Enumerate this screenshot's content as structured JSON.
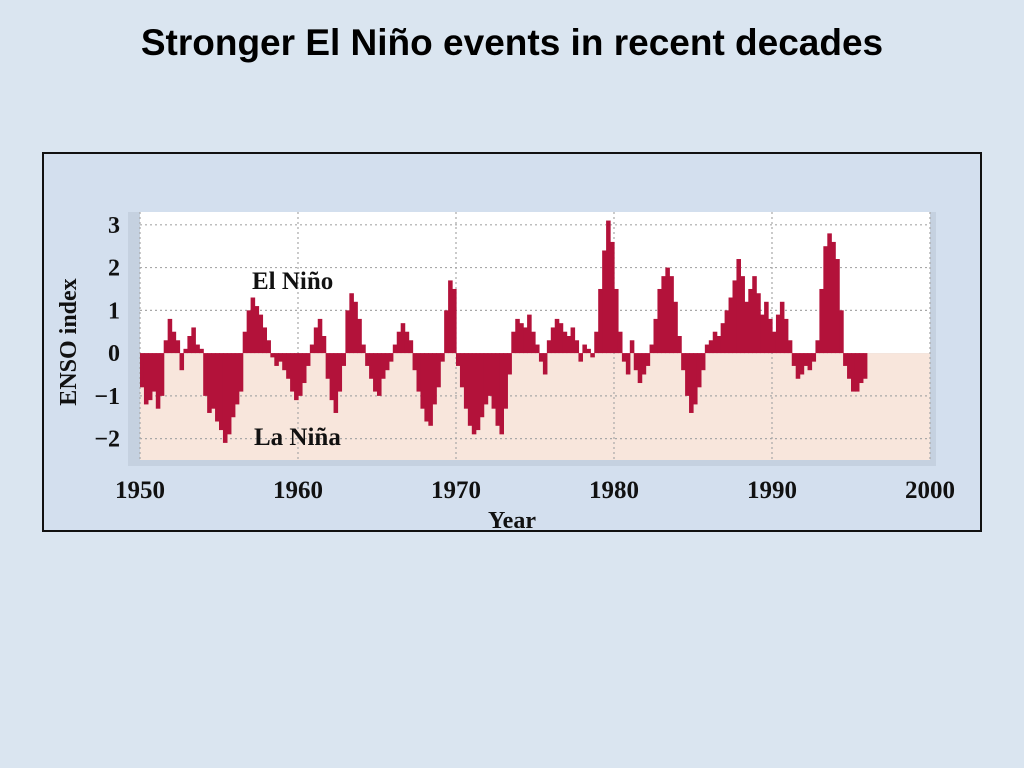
{
  "slide": {
    "title": "Stronger El Niño events in recent decades"
  },
  "colors": {
    "background": "#dae5f0",
    "el_nino_bg": "#ffffff",
    "la_nina_bg": "#f8e6dc",
    "bars": "#b3123a",
    "grid": "#a8a8a8"
  },
  "chart_data": {
    "type": "bar",
    "title": "",
    "xlabel": "Year",
    "ylabel": "ENSO index",
    "xlim": [
      1950,
      2000
    ],
    "ylim": [
      -2.5,
      3.3
    ],
    "x_ticks": [
      "1950",
      "1960",
      "1970",
      "1980",
      "1990",
      "2000"
    ],
    "y_ticks": [
      "3",
      "2",
      "1",
      "0",
      "−1",
      "−2"
    ],
    "grid": true,
    "annotations": [
      "El Niño",
      "La Niña"
    ],
    "x_start": 1950,
    "x_step": 0.25,
    "values": [
      -0.8,
      -1.2,
      -1.1,
      -0.9,
      -1.3,
      -1.0,
      0.3,
      0.8,
      0.5,
      0.3,
      -0.4,
      0.1,
      0.4,
      0.6,
      0.2,
      0.1,
      -1.0,
      -1.4,
      -1.3,
      -1.6,
      -1.8,
      -2.1,
      -1.9,
      -1.5,
      -1.2,
      -0.9,
      0.5,
      1.0,
      1.3,
      1.1,
      0.9,
      0.6,
      0.3,
      -0.1,
      -0.3,
      -0.2,
      -0.4,
      -0.6,
      -0.9,
      -1.1,
      -1.0,
      -0.7,
      -0.3,
      0.2,
      0.6,
      0.8,
      0.4,
      -0.6,
      -1.1,
      -1.4,
      -0.9,
      -0.3,
      1.0,
      1.4,
      1.2,
      0.8,
      0.2,
      -0.3,
      -0.6,
      -0.9,
      -1.0,
      -0.6,
      -0.4,
      -0.2,
      0.2,
      0.5,
      0.7,
      0.5,
      0.3,
      -0.4,
      -0.9,
      -1.3,
      -1.6,
      -1.7,
      -1.2,
      -0.8,
      -0.2,
      1.0,
      1.7,
      1.5,
      -0.3,
      -0.8,
      -1.3,
      -1.7,
      -1.9,
      -1.8,
      -1.5,
      -1.2,
      -1.0,
      -1.3,
      -1.7,
      -1.9,
      -1.3,
      -0.5,
      0.5,
      0.8,
      0.7,
      0.6,
      0.9,
      0.5,
      0.2,
      -0.2,
      -0.5,
      0.3,
      0.6,
      0.8,
      0.7,
      0.5,
      0.4,
      0.6,
      0.3,
      -0.2,
      0.2,
      0.1,
      -0.1,
      0.5,
      1.5,
      2.4,
      3.1,
      2.6,
      1.5,
      0.5,
      -0.2,
      -0.5,
      0.3,
      -0.4,
      -0.7,
      -0.5,
      -0.3,
      0.2,
      0.8,
      1.5,
      1.8,
      2.0,
      1.8,
      1.2,
      0.4,
      -0.4,
      -1.0,
      -1.4,
      -1.2,
      -0.8,
      -0.4,
      0.2,
      0.3,
      0.5,
      0.4,
      0.7,
      1.0,
      1.3,
      1.7,
      2.2,
      1.8,
      1.2,
      1.5,
      1.8,
      1.4,
      0.9,
      1.2,
      0.8,
      0.5,
      0.9,
      1.2,
      0.8,
      0.3,
      -0.3,
      -0.6,
      -0.5,
      -0.3,
      -0.4,
      -0.2,
      0.3,
      1.5,
      2.5,
      2.8,
      2.6,
      2.2,
      1.0,
      -0.3,
      -0.6,
      -0.9,
      -0.9,
      -0.7,
      -0.6
    ]
  }
}
